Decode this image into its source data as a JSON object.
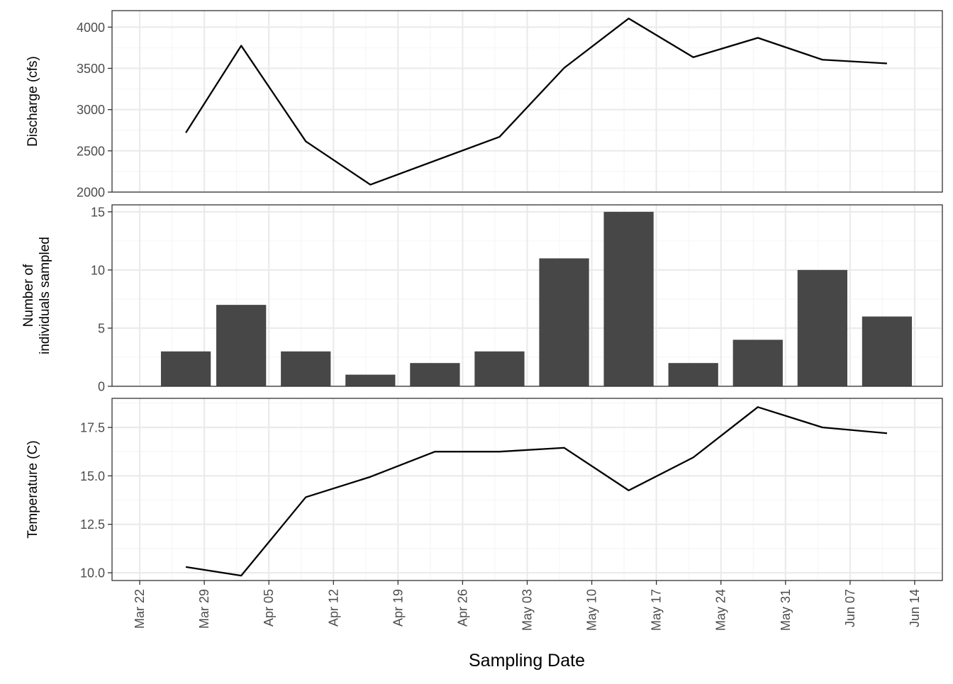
{
  "chart_data": [
    {
      "type": "line",
      "ylabel": "Discharge (cfs)",
      "ylim": [
        2000,
        4200
      ],
      "yticks": [
        2000,
        2500,
        3000,
        3500,
        4000
      ],
      "x": [
        "2019-03-27",
        "2019-04-02",
        "2019-04-09",
        "2019-04-16",
        "2019-04-30",
        "2019-05-07",
        "2019-05-14",
        "2019-05-21",
        "2019-05-28",
        "2019-06-04",
        "2019-06-11"
      ],
      "values": [
        2720,
        3775,
        2615,
        2090,
        2670,
        3505,
        4105,
        3635,
        3870,
        3605,
        3560
      ],
      "grid": true
    },
    {
      "type": "bar",
      "ylabel_lines": [
        "Number of",
        "individuals sampled"
      ],
      "ylim": [
        0,
        15.6
      ],
      "yticks": [
        0,
        5,
        10,
        15
      ],
      "x": [
        "2019-03-27",
        "2019-04-02",
        "2019-04-09",
        "2019-04-16",
        "2019-04-23",
        "2019-04-30",
        "2019-05-07",
        "2019-05-14",
        "2019-05-21",
        "2019-05-28",
        "2019-06-04",
        "2019-06-11"
      ],
      "values": [
        3,
        7,
        3,
        1,
        2,
        3,
        11,
        15,
        2,
        4,
        10,
        6
      ],
      "bar_color": "#474747",
      "grid": true
    },
    {
      "type": "line",
      "ylabel": "Temperature (C)",
      "ylim": [
        9.6,
        19.0
      ],
      "yticks": [
        10.0,
        12.5,
        15.0,
        17.5
      ],
      "ytick_labels": [
        "10.0",
        "12.5",
        "15.0",
        "17.5"
      ],
      "x": [
        "2019-03-27",
        "2019-04-02",
        "2019-04-09",
        "2019-04-16",
        "2019-04-23",
        "2019-04-30",
        "2019-05-07",
        "2019-05-14",
        "2019-05-21",
        "2019-05-28",
        "2019-06-04",
        "2019-06-11"
      ],
      "values": [
        10.3,
        9.85,
        13.9,
        14.95,
        16.25,
        16.25,
        16.45,
        14.25,
        15.95,
        18.55,
        17.5,
        17.2
      ],
      "grid": true
    }
  ],
  "x_axis": {
    "title": "Sampling Date",
    "xlim": [
      "2019-03-19",
      "2019-06-17"
    ],
    "tick_dates": [
      "2019-03-22",
      "2019-03-29",
      "2019-04-05",
      "2019-04-12",
      "2019-04-19",
      "2019-04-26",
      "2019-05-03",
      "2019-05-10",
      "2019-05-17",
      "2019-05-24",
      "2019-05-31",
      "2019-06-07",
      "2019-06-14"
    ],
    "tick_labels": [
      "Mar 22",
      "Mar 29",
      "Apr 05",
      "Apr 12",
      "Apr 19",
      "Apr 26",
      "May 03",
      "May 10",
      "May 17",
      "May 24",
      "May 31",
      "Jun 07",
      "Jun 14"
    ]
  },
  "colors": {
    "line": "#000000",
    "bar": "#474747",
    "grid_major": "#ebebeb",
    "grid_minor": "#f5f5f5",
    "panel_border": "#333333"
  }
}
